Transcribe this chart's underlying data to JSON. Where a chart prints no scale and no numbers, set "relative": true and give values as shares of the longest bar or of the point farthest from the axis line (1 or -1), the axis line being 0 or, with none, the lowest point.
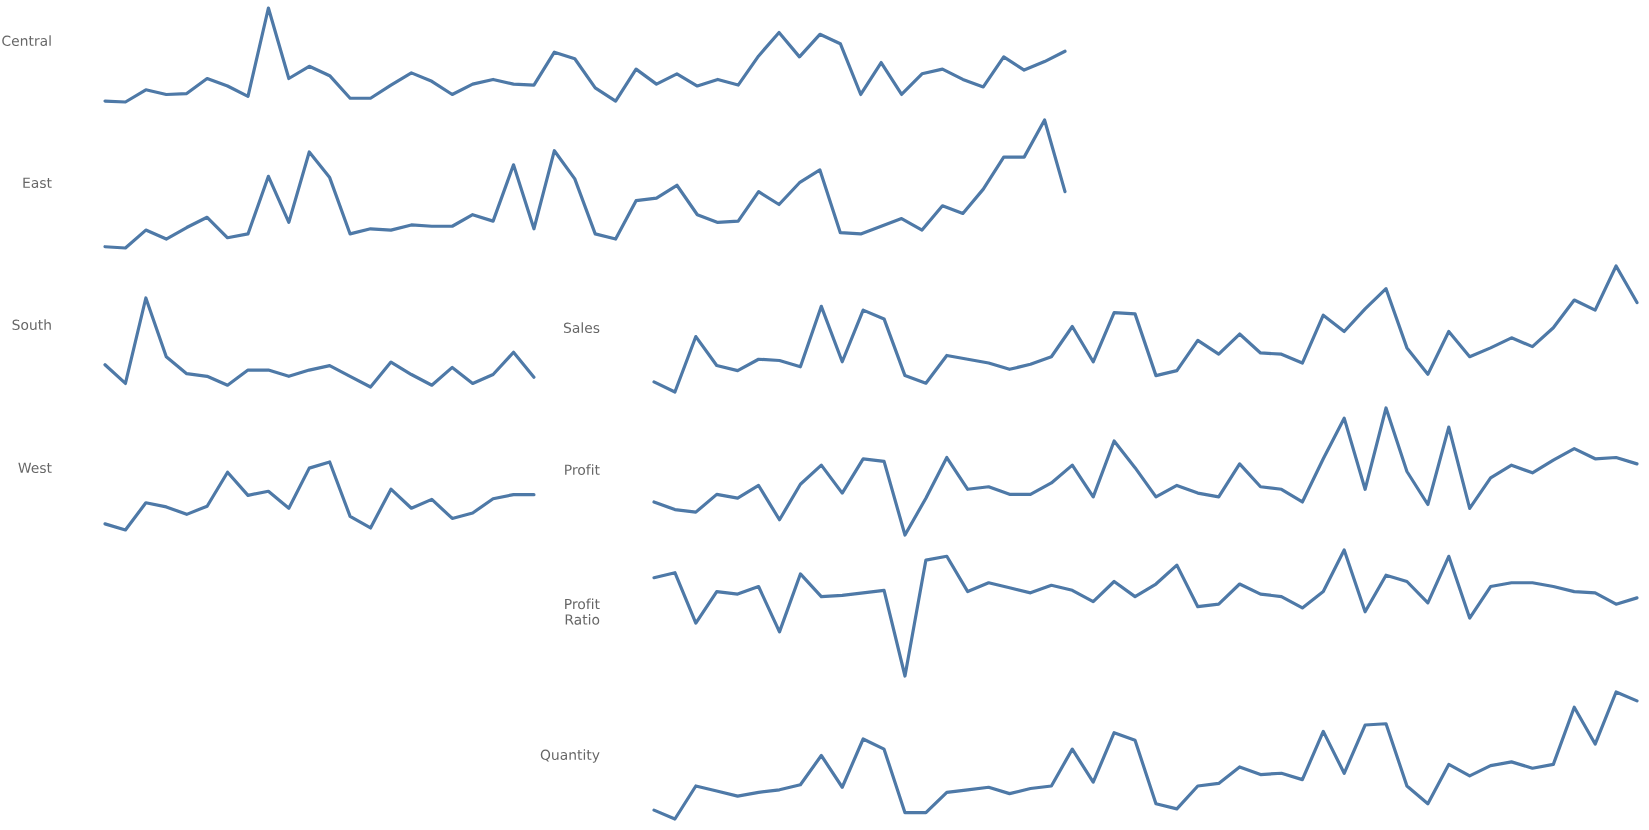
{
  "chart_data": [
    {
      "type": "line",
      "ylabel": "Central",
      "relative": true,
      "categories": [
        null,
        null,
        null,
        null,
        null,
        null,
        null,
        null,
        null,
        null,
        null,
        null,
        null,
        null,
        null,
        null,
        null,
        null,
        null,
        null,
        null,
        null,
        null,
        null,
        null,
        null,
        null,
        null,
        null,
        null,
        null,
        null,
        null,
        null,
        null,
        null,
        null,
        null,
        null,
        null,
        null,
        null,
        null,
        null,
        null,
        null,
        null,
        null
      ],
      "series": [
        {
          "color": "#4e79a7",
          "values": [
            0.01,
            0,
            0.13,
            0.08,
            0.09,
            0.25,
            0.17,
            0.06,
            1,
            0.25,
            0.38,
            0.28,
            0.04,
            0.04,
            0.18,
            0.31,
            0.22,
            0.08,
            0.19,
            0.24,
            0.19,
            0.18,
            0.53,
            0.46,
            0.15,
            0.01,
            0.35,
            0.19,
            0.3,
            0.17,
            0.24,
            0.18,
            0.49,
            0.74,
            0.48,
            0.72,
            0.62,
            0.08,
            0.42,
            0.08,
            0.3,
            0.35,
            0.24,
            0.16,
            0.48,
            0.34,
            0.43,
            0.54
          ]
        }
      ]
    },
    {
      "type": "line",
      "ylabel": "East",
      "relative": true,
      "categories": [
        null,
        null,
        null,
        null,
        null,
        null,
        null,
        null,
        null,
        null,
        null,
        null,
        null,
        null,
        null,
        null,
        null,
        null,
        null,
        null,
        null,
        null,
        null,
        null,
        null,
        null,
        null,
        null,
        null,
        null,
        null,
        null,
        null,
        null,
        null,
        null,
        null,
        null,
        null,
        null,
        null,
        null,
        null,
        null,
        null,
        null,
        null,
        null
      ],
      "series": [
        {
          "color": "#4e79a7",
          "values": [
            0.01,
            0,
            0.14,
            0.07,
            0.16,
            0.24,
            0.08,
            0.11,
            0.56,
            0.2,
            0.75,
            0.55,
            0.11,
            0.15,
            0.14,
            0.18,
            0.17,
            0.17,
            0.26,
            0.21,
            0.65,
            0.15,
            0.76,
            0.54,
            0.11,
            0.07,
            0.37,
            0.39,
            0.49,
            0.26,
            0.2,
            0.21,
            0.44,
            0.34,
            0.51,
            0.61,
            0.12,
            0.11,
            0.17,
            0.23,
            0.14,
            0.33,
            0.27,
            0.46,
            0.71,
            0.71,
            1,
            0.44
          ]
        }
      ]
    },
    {
      "type": "line",
      "ylabel": "South",
      "relative": true,
      "categories": [
        null,
        null,
        null,
        null,
        null,
        null,
        null,
        null,
        null,
        null,
        null,
        null,
        null,
        null,
        null,
        null,
        null,
        null,
        null,
        null,
        null,
        null
      ],
      "series": [
        {
          "color": "#4e79a7",
          "values": [
            0.25,
            0.04,
            1,
            0.34,
            0.15,
            0.12,
            0.02,
            0.19,
            0.19,
            0.12,
            0.19,
            0.24,
            0.12,
            0,
            0.28,
            0.14,
            0.02,
            0.22,
            0.04,
            0.14,
            0.39,
            0.11
          ]
        }
      ]
    },
    {
      "type": "line",
      "ylabel": "West",
      "relative": true,
      "categories": [
        null,
        null,
        null,
        null,
        null,
        null,
        null,
        null,
        null,
        null,
        null,
        null,
        null,
        null,
        null,
        null,
        null,
        null,
        null,
        null,
        null,
        null
      ],
      "series": [
        {
          "color": "#4e79a7",
          "values": [
            0.09,
            0,
            0.4,
            0.34,
            0.23,
            0.35,
            0.85,
            0.51,
            0.57,
            0.32,
            0.91,
            1,
            0.2,
            0.03,
            0.6,
            0.32,
            0.45,
            0.17,
            0.25,
            0.46,
            0.52,
            0.52
          ]
        }
      ]
    },
    {
      "type": "line",
      "ylabel": "Sales",
      "relative": true,
      "categories": [
        null,
        null,
        null,
        null,
        null,
        null,
        null,
        null,
        null,
        null,
        null,
        null,
        null,
        null,
        null,
        null,
        null,
        null,
        null,
        null,
        null,
        null,
        null,
        null,
        null,
        null,
        null,
        null,
        null,
        null,
        null,
        null,
        null,
        null,
        null,
        null,
        null,
        null,
        null,
        null,
        null,
        null,
        null,
        null,
        null,
        null,
        null,
        null
      ],
      "series": [
        {
          "color": "#4e79a7",
          "values": [
            0.08,
            0,
            0.44,
            0.21,
            0.17,
            0.26,
            0.25,
            0.2,
            0.68,
            0.24,
            0.65,
            0.58,
            0.13,
            0.07,
            0.29,
            0.26,
            0.23,
            0.18,
            0.22,
            0.28,
            0.52,
            0.24,
            0.63,
            0.62,
            0.13,
            0.17,
            0.41,
            0.3,
            0.46,
            0.31,
            0.3,
            0.23,
            0.61,
            0.48,
            0.66,
            0.82,
            0.35,
            0.14,
            0.48,
            0.28,
            0.35,
            0.43,
            0.36,
            0.51,
            0.73,
            0.65,
            1,
            0.71
          ]
        }
      ]
    },
    {
      "type": "line",
      "ylabel": "Profit",
      "relative": true,
      "categories": [
        null,
        null,
        null,
        null,
        null,
        null,
        null,
        null,
        null,
        null,
        null,
        null,
        null,
        null,
        null,
        null,
        null,
        null,
        null,
        null,
        null,
        null,
        null,
        null,
        null,
        null,
        null,
        null,
        null,
        null,
        null,
        null,
        null,
        null,
        null,
        null,
        null,
        null,
        null,
        null,
        null,
        null,
        null,
        null,
        null,
        null,
        null,
        null
      ],
      "series": [
        {
          "color": "#4e79a7",
          "values": [
            0.26,
            0.2,
            0.18,
            0.32,
            0.29,
            0.39,
            0.12,
            0.4,
            0.55,
            0.33,
            0.6,
            0.58,
            0,
            0.29,
            0.61,
            0.36,
            0.38,
            0.32,
            0.32,
            0.41,
            0.55,
            0.3,
            0.74,
            0.53,
            0.3,
            0.39,
            0.33,
            0.3,
            0.56,
            0.38,
            0.36,
            0.26,
            0.6,
            0.92,
            0.36,
            1,
            0.5,
            0.24,
            0.85,
            0.21,
            0.45,
            0.55,
            0.49,
            0.59,
            0.68,
            0.6,
            0.61,
            0.56
          ]
        }
      ]
    },
    {
      "type": "line",
      "ylabel": "Profit\nRatio",
      "relative": true,
      "categories": [
        null,
        null,
        null,
        null,
        null,
        null,
        null,
        null,
        null,
        null,
        null,
        null,
        null,
        null,
        null,
        null,
        null,
        null,
        null,
        null,
        null,
        null,
        null,
        null,
        null,
        null,
        null,
        null,
        null,
        null,
        null,
        null,
        null,
        null,
        null,
        null,
        null,
        null,
        null,
        null,
        null,
        null,
        null,
        null,
        null,
        null,
        null,
        null
      ],
      "series": [
        {
          "color": "#4e79a7",
          "values": [
            0.78,
            0.82,
            0.42,
            0.67,
            0.65,
            0.71,
            0.35,
            0.81,
            0.63,
            0.64,
            0.66,
            0.68,
            0,
            0.92,
            0.95,
            0.67,
            0.74,
            0.7,
            0.66,
            0.72,
            0.68,
            0.59,
            0.75,
            0.63,
            0.73,
            0.88,
            0.55,
            0.57,
            0.73,
            0.65,
            0.63,
            0.54,
            0.67,
            1,
            0.51,
            0.8,
            0.75,
            0.58,
            0.95,
            0.46,
            0.71,
            0.74,
            0.74,
            0.71,
            0.67,
            0.66,
            0.57,
            0.62
          ]
        }
      ]
    },
    {
      "type": "line",
      "ylabel": "Quantity",
      "relative": true,
      "categories": [
        null,
        null,
        null,
        null,
        null,
        null,
        null,
        null,
        null,
        null,
        null,
        null,
        null,
        null,
        null,
        null,
        null,
        null,
        null,
        null,
        null,
        null,
        null,
        null,
        null,
        null,
        null,
        null,
        null,
        null,
        null,
        null,
        null,
        null,
        null,
        null,
        null,
        null,
        null,
        null,
        null,
        null,
        null,
        null,
        null,
        null,
        null,
        null
      ],
      "series": [
        {
          "color": "#4e79a7",
          "values": [
            0.07,
            0,
            0.26,
            0.22,
            0.18,
            0.21,
            0.23,
            0.27,
            0.5,
            0.25,
            0.63,
            0.55,
            0.05,
            0.05,
            0.21,
            0.23,
            0.25,
            0.2,
            0.24,
            0.26,
            0.55,
            0.29,
            0.68,
            0.62,
            0.12,
            0.08,
            0.26,
            0.28,
            0.41,
            0.35,
            0.36,
            0.31,
            0.69,
            0.36,
            0.74,
            0.75,
            0.26,
            0.12,
            0.43,
            0.34,
            0.42,
            0.45,
            0.4,
            0.43,
            0.88,
            0.59,
            1,
            0.93
          ]
        }
      ]
    }
  ]
}
